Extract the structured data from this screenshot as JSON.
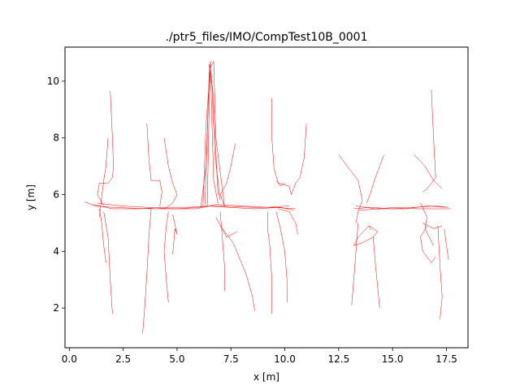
{
  "chart_data": {
    "type": "line",
    "title": "./ptr5_files/IMO/CompTest10B_0001",
    "xlabel": "x [m]",
    "ylabel": "y [m]",
    "xlim": [
      -0.2,
      18.5
    ],
    "ylim": [
      0.6,
      11.2
    ],
    "xticks": [
      0.0,
      2.5,
      5.0,
      7.5,
      10.0,
      12.5,
      15.0,
      17.5
    ],
    "xtick_labels": [
      "0.0",
      "2.5",
      "5.0",
      "7.5",
      "10.0",
      "12.5",
      "15.0",
      "17.5"
    ],
    "yticks": [
      2,
      4,
      6,
      8,
      10
    ],
    "ytick_labels": [
      "2",
      "4",
      "6",
      "8",
      "10"
    ],
    "grid": false,
    "line_color": "#ff0000",
    "series": [
      {
        "x": [
          0.7,
          1.2,
          2.0,
          3.0,
          4.0,
          5.0,
          6.0,
          6.6,
          7.5,
          8.5,
          9.5,
          10.5
        ],
        "y": [
          5.75,
          5.6,
          5.55,
          5.52,
          5.5,
          5.5,
          5.55,
          5.6,
          5.58,
          5.55,
          5.55,
          5.5
        ]
      },
      {
        "x": [
          1.1,
          2.0,
          3.2,
          4.4,
          5.5,
          6.4,
          7.4,
          8.6,
          9.8,
          10.4
        ],
        "y": [
          5.65,
          5.5,
          5.5,
          5.55,
          5.55,
          5.6,
          5.55,
          5.5,
          5.55,
          5.45
        ]
      },
      {
        "x": [
          1.3,
          2.4,
          3.6,
          4.8,
          5.9,
          6.8,
          8.0,
          9.2,
          10.2
        ],
        "y": [
          5.7,
          5.6,
          5.55,
          5.5,
          5.5,
          5.65,
          5.6,
          5.55,
          5.6
        ]
      },
      {
        "x": [
          13.2,
          14.0,
          15.0,
          16.0,
          17.0,
          17.6
        ],
        "y": [
          5.5,
          5.55,
          5.5,
          5.55,
          5.6,
          5.55
        ]
      },
      {
        "x": [
          13.3,
          14.2,
          15.2,
          16.2,
          17.2,
          17.7
        ],
        "y": [
          5.6,
          5.5,
          5.55,
          5.5,
          5.5,
          5.5
        ]
      },
      {
        "x": [
          13.4,
          14.5,
          15.6,
          16.6,
          17.5
        ],
        "y": [
          5.45,
          5.5,
          5.5,
          5.6,
          5.55
        ]
      },
      {
        "x": [
          6.4,
          6.45,
          6.5,
          6.55,
          6.6,
          6.7,
          6.9
        ],
        "y": [
          5.6,
          7.5,
          9.5,
          10.7,
          9.0,
          6.5,
          5.7
        ]
      },
      {
        "x": [
          6.3,
          6.4,
          6.5,
          6.6,
          6.75,
          7.0
        ],
        "y": [
          5.65,
          8.0,
          10.6,
          10.2,
          7.5,
          5.8
        ]
      },
      {
        "x": [
          6.2,
          6.35,
          6.55,
          6.7,
          6.8,
          7.2
        ],
        "y": [
          5.6,
          8.5,
          10.5,
          10.7,
          8.0,
          5.6
        ]
      },
      {
        "x": [
          6.1,
          6.35,
          6.5,
          6.65,
          6.9
        ],
        "y": [
          5.55,
          7.0,
          10.3,
          9.8,
          6.0
        ]
      },
      {
        "x": [
          1.9,
          2.0,
          2.05,
          2.0,
          1.8,
          1.4,
          1.3,
          1.6
        ],
        "y": [
          9.65,
          8.0,
          7.0,
          6.6,
          6.4,
          6.4,
          6.0,
          5.6
        ]
      },
      {
        "x": [
          1.8,
          1.7,
          1.6,
          1.5,
          1.4
        ],
        "y": [
          8.0,
          7.0,
          6.5,
          5.9,
          5.2
        ]
      },
      {
        "x": [
          1.4,
          1.5,
          1.6,
          1.7
        ],
        "y": [
          5.5,
          5.0,
          4.2,
          3.6
        ]
      },
      {
        "x": [
          1.6,
          1.8,
          1.9,
          2.0
        ],
        "y": [
          5.4,
          4.5,
          3.0,
          1.8
        ]
      },
      {
        "x": [
          3.6,
          3.7,
          3.8,
          4.2,
          4.3,
          4.2
        ],
        "y": [
          8.5,
          7.2,
          6.5,
          6.5,
          6.1,
          5.6
        ]
      },
      {
        "x": [
          3.8,
          3.7,
          3.6,
          3.5,
          3.4
        ],
        "y": [
          5.5,
          4.6,
          3.2,
          2.0,
          1.1
        ]
      },
      {
        "x": [
          4.4,
          4.6,
          4.8,
          5.0,
          4.8,
          4.4
        ],
        "y": [
          8.0,
          7.0,
          6.4,
          6.0,
          5.7,
          5.5
        ]
      },
      {
        "x": [
          4.6,
          4.5,
          4.4,
          4.5,
          4.6
        ],
        "y": [
          5.4,
          4.9,
          4.0,
          3.0,
          2.2
        ]
      },
      {
        "x": [
          4.8,
          5.0,
          4.9,
          4.8
        ],
        "y": [
          5.3,
          4.6,
          4.8,
          3.9
        ]
      },
      {
        "x": [
          7.7,
          7.5,
          7.3,
          7.0,
          7.2
        ],
        "y": [
          7.8,
          7.0,
          6.4,
          6.0,
          5.6
        ]
      },
      {
        "x": [
          7.0,
          7.1,
          7.2,
          7.2
        ],
        "y": [
          5.4,
          4.5,
          3.5,
          2.6
        ]
      },
      {
        "x": [
          7.0,
          7.6,
          8.2,
          8.5,
          8.6
        ],
        "y": [
          4.9,
          4.3,
          3.2,
          2.4,
          1.9
        ]
      },
      {
        "x": [
          6.8,
          7.3,
          7.8
        ],
        "y": [
          5.2,
          4.5,
          4.7
        ]
      },
      {
        "x": [
          9.4,
          9.4,
          9.5,
          9.7,
          10.2,
          10.3
        ],
        "y": [
          9.4,
          8.0,
          6.9,
          6.4,
          6.3,
          6.0
        ]
      },
      {
        "x": [
          9.6,
          9.8,
          10.0
        ],
        "y": [
          6.5,
          6.3,
          6.4
        ]
      },
      {
        "x": [
          11.0,
          10.9,
          10.7,
          10.5,
          10.3
        ],
        "y": [
          8.5,
          7.3,
          6.6,
          6.4,
          6.0
        ]
      },
      {
        "x": [
          9.2,
          9.2,
          9.3,
          9.4,
          9.4
        ],
        "y": [
          5.4,
          4.8,
          4.2,
          3.0,
          1.8
        ]
      },
      {
        "x": [
          9.6,
          9.8,
          10.0,
          10.1,
          10.1
        ],
        "y": [
          5.4,
          4.8,
          4.0,
          3.0,
          2.2
        ]
      },
      {
        "x": [
          9.7,
          10.2,
          10.5,
          10.6
        ],
        "y": [
          5.5,
          5.4,
          5.0,
          4.6
        ]
      },
      {
        "x": [
          12.5,
          13.0,
          13.4,
          13.6,
          13.4,
          13.3
        ],
        "y": [
          7.4,
          6.9,
          6.5,
          5.8,
          5.4,
          5.0
        ]
      },
      {
        "x": [
          13.4,
          13.3,
          13.2,
          13.1
        ],
        "y": [
          5.0,
          4.0,
          3.0,
          2.1
        ]
      },
      {
        "x": [
          14.6,
          14.4,
          14.2,
          14.0,
          13.8
        ],
        "y": [
          7.4,
          7.0,
          6.6,
          6.1,
          5.7
        ]
      },
      {
        "x": [
          13.9,
          13.4,
          13.2,
          13.6,
          14.1,
          14.3,
          13.9,
          14.0
        ],
        "y": [
          4.9,
          4.5,
          4.2,
          4.3,
          4.5,
          4.7,
          4.9,
          4.75
        ]
      },
      {
        "x": [
          14.1,
          14.2,
          14.3,
          14.4
        ],
        "y": [
          4.5,
          3.6,
          2.8,
          2.0
        ]
      },
      {
        "x": [
          16.8,
          16.9,
          17.0,
          16.6,
          16.4
        ],
        "y": [
          9.7,
          8.0,
          6.6,
          6.2,
          6.1
        ]
      },
      {
        "x": [
          16.0,
          16.5,
          16.9,
          17.3
        ],
        "y": [
          7.4,
          7.0,
          6.5,
          6.2
        ]
      },
      {
        "x": [
          16.3,
          16.6,
          16.5,
          16.7,
          16.9
        ],
        "y": [
          5.7,
          5.2,
          4.8,
          4.5,
          4.2
        ]
      },
      {
        "x": [
          16.6,
          16.3,
          16.4,
          16.8,
          17.0
        ],
        "y": [
          4.9,
          4.5,
          4.0,
          3.6,
          3.8
        ]
      },
      {
        "x": [
          17.1,
          17.2,
          17.3,
          17.2
        ],
        "y": [
          4.9,
          3.5,
          2.4,
          1.6
        ]
      },
      {
        "x": [
          17.4,
          17.5,
          17.6
        ],
        "y": [
          4.8,
          4.2,
          3.7
        ]
      },
      {
        "x": [
          16.4,
          16.9,
          17.3
        ],
        "y": [
          5.0,
          4.8,
          4.9
        ]
      }
    ]
  }
}
